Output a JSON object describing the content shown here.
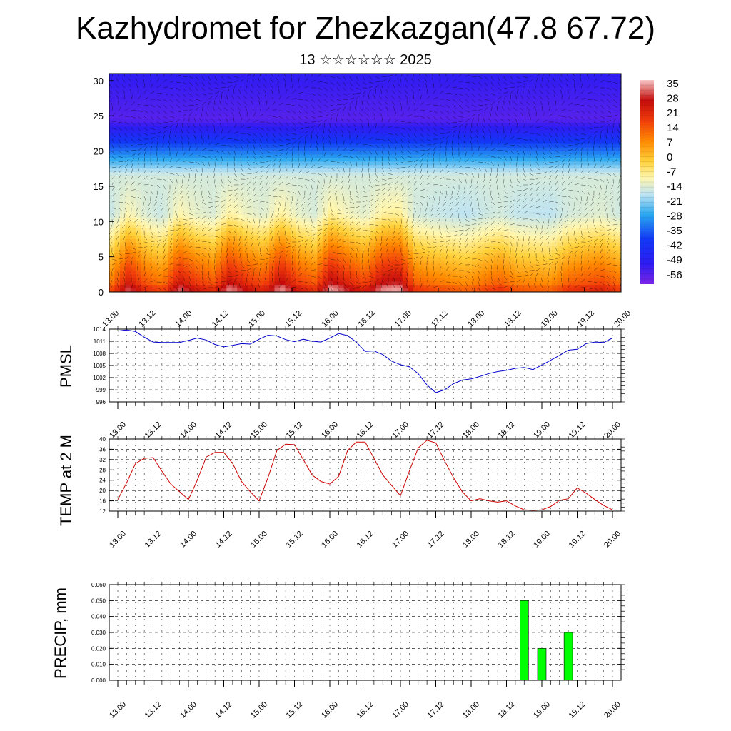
{
  "title": "Kazhydromet for Zhezkazgan(47.8 67.72)",
  "subtitle": "13 ☆☆☆☆☆☆ 2025",
  "chart_data": [
    {
      "type": "heatmap",
      "panel": "upper-air temperature cross-section with wind vectors",
      "x_ticks": [
        "13.00",
        "13.12",
        "14.00",
        "14.12",
        "15.00",
        "15.12",
        "16.00",
        "16.12",
        "17.00",
        "17.12",
        "18.00",
        "18.12",
        "19.00",
        "19.12",
        "20.00"
      ],
      "y_ticks": [
        "0",
        "5",
        "10",
        "15",
        "20",
        "25",
        "30"
      ],
      "ylim": [
        0,
        31
      ],
      "colorbar": {
        "labels": [
          "35",
          "28",
          "21",
          "14",
          "7",
          "0",
          "-7",
          "-14",
          "-21",
          "-28",
          "-35",
          "-42",
          "-49",
          "-56"
        ],
        "range": [
          -63,
          42
        ],
        "placement": "right"
      },
      "ground_temperature_profile": [
        17,
        33,
        22,
        17,
        34,
        26,
        22,
        36,
        28,
        23,
        37,
        26,
        21,
        38,
        30,
        24,
        36,
        38,
        20,
        17,
        15,
        13,
        17,
        20,
        15,
        14,
        13,
        20,
        22,
        24,
        19
      ]
    },
    {
      "type": "line",
      "ylabel": "PMSL",
      "color": "#0000cc",
      "x_ticks": [
        "13.00",
        "13.12",
        "14.00",
        "14.12",
        "15.00",
        "15.12",
        "16.00",
        "16.12",
        "17.00",
        "17.12",
        "18.00",
        "18.12",
        "19.00",
        "19.12",
        "20.00"
      ],
      "y_ticks": [
        "1014",
        "1011",
        "1008",
        "1005",
        "1002",
        "999",
        "996"
      ],
      "ylim": [
        996,
        1014
      ],
      "values": [
        1013.5,
        1013.8,
        1013.4,
        1012.0,
        1010.8,
        1010.7,
        1010.7,
        1010.7,
        1011.2,
        1011.8,
        1011.3,
        1010.2,
        1009.6,
        1010.0,
        1010.4,
        1010.3,
        1011.5,
        1012.5,
        1012.3,
        1011.4,
        1010.9,
        1011.5,
        1011.0,
        1010.8,
        1011.8,
        1012.9,
        1012.4,
        1010.8,
        1008.5,
        1008.6,
        1007.7,
        1006.1,
        1005.2,
        1004.7,
        1003.0,
        1000.2,
        998.3,
        999.0,
        1000.5,
        1001.4,
        1001.7,
        1002.3,
        1003.0,
        1003.5,
        1003.8,
        1004.3,
        1004.5,
        1004.0,
        1005.1,
        1006.3,
        1007.5,
        1008.8,
        1009.0,
        1010.4,
        1010.8,
        1010.7,
        1011.8
      ]
    },
    {
      "type": "line",
      "ylabel": "TEMP at 2 M",
      "color": "#cc0000",
      "x_ticks": [
        "13.00",
        "13.12",
        "14.00",
        "14.12",
        "15.00",
        "15.12",
        "16.00",
        "16.12",
        "17.00",
        "17.12",
        "18.00",
        "18.12",
        "19.00",
        "19.12",
        "20.00"
      ],
      "y_ticks": [
        "40",
        "36",
        "32",
        "28",
        "24",
        "20",
        "16",
        "12"
      ],
      "ylim": [
        12,
        40
      ],
      "values": [
        16.5,
        23.0,
        30.5,
        32.5,
        32.8,
        27.5,
        22.5,
        19.5,
        16.5,
        24.0,
        33.0,
        34.8,
        34.8,
        30.5,
        23.5,
        19.5,
        16.0,
        25.0,
        35.5,
        38.0,
        37.8,
        32.0,
        26.0,
        23.5,
        22.5,
        25.5,
        35.5,
        38.8,
        38.8,
        32.5,
        26.0,
        22.0,
        18.0,
        27.5,
        36.5,
        39.5,
        38.5,
        31.5,
        25.0,
        19.5,
        16.0,
        16.8,
        16.0,
        15.5,
        16.0,
        14.0,
        12.5,
        12.3,
        12.5,
        13.8,
        16.2,
        16.8,
        21.0,
        19.0,
        16.5,
        14.2,
        12.5
      ]
    },
    {
      "type": "bar",
      "ylabel": "PRECIP, mm",
      "color": "#00ff00",
      "x_ticks": [
        "13.00",
        "13.12",
        "14.00",
        "14.12",
        "15.00",
        "15.12",
        "16.00",
        "16.12",
        "17.00",
        "17.12",
        "18.00",
        "18.12",
        "19.00",
        "19.12",
        "20.00"
      ],
      "y_ticks": [
        "0.060",
        "0.050",
        "0.040",
        "0.030",
        "0.020",
        "0.010",
        "0.000"
      ],
      "ylim": [
        0,
        0.06
      ],
      "bars": [
        {
          "x_index": 46,
          "value": 0.05
        },
        {
          "x_index": 48,
          "value": 0.02
        },
        {
          "x_index": 51,
          "value": 0.03
        }
      ]
    }
  ]
}
